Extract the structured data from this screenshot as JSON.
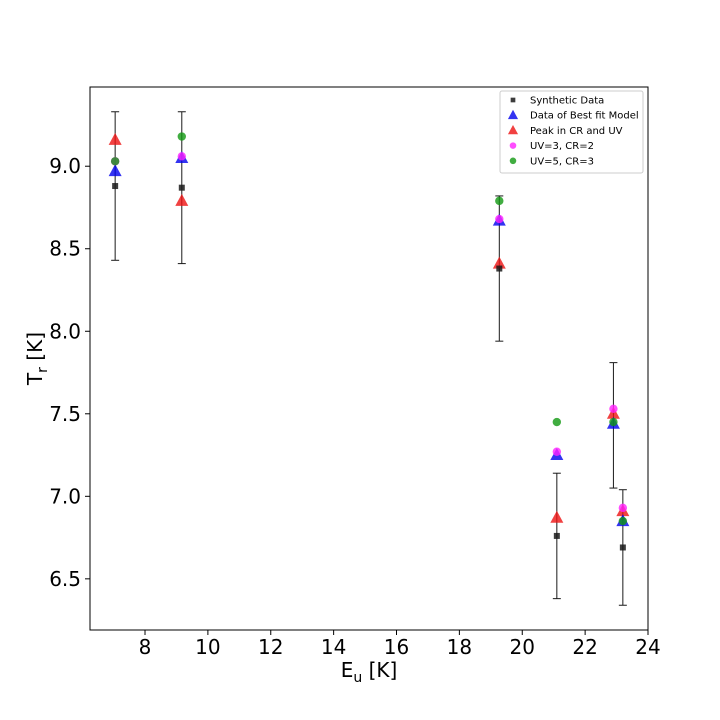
{
  "chart_data": {
    "type": "scatter",
    "xlabel": {
      "main": "E",
      "sub": "u",
      "unit": " [K]"
    },
    "ylabel": {
      "main": "T",
      "sub": "r",
      "unit": " [K]"
    },
    "xlim": [
      6.25,
      24.0
    ],
    "ylim": [
      6.19,
      9.48
    ],
    "xticks": [
      8,
      10,
      12,
      14,
      16,
      18,
      20,
      22,
      24
    ],
    "yticks": [
      6.5,
      7.0,
      7.5,
      8.0,
      8.5,
      9.0
    ],
    "xtick_labels": [
      "8",
      "10",
      "12",
      "14",
      "16",
      "18",
      "20",
      "22",
      "24"
    ],
    "ytick_labels": [
      "6.5",
      "7.0",
      "7.5",
      "8.0",
      "8.5",
      "9.0"
    ],
    "legend_position": "top-right",
    "grid": false,
    "series": [
      {
        "name": "Synthetic Data",
        "marker": "square",
        "color": "#1a1a1a",
        "x": [
          7.05,
          9.17,
          19.27,
          21.1,
          23.2
        ],
        "y": [
          8.88,
          8.87,
          8.38,
          6.76,
          6.69
        ],
        "yerr": [
          0.45,
          0.46,
          0.44,
          0.38,
          0.35
        ]
      },
      {
        "name": "Data of Best fit Model",
        "marker": "triangle",
        "color": "#0000ee",
        "x": [
          7.05,
          9.17,
          19.27,
          21.1,
          22.9,
          23.2
        ],
        "y": [
          8.97,
          9.05,
          8.67,
          7.25,
          7.44,
          6.85
        ]
      },
      {
        "name": "Peak in CR and UV",
        "marker": "triangle",
        "color": "#ee1111",
        "x": [
          7.05,
          9.17,
          19.27,
          21.1,
          22.9,
          23.2
        ],
        "y": [
          9.16,
          8.79,
          8.41,
          6.87,
          7.5,
          6.91
        ]
      },
      {
        "name": "UV=3, CR=2",
        "marker": "circle",
        "color": "#ff22ff",
        "x": [
          7.05,
          9.17,
          19.27,
          21.1,
          22.9,
          23.2
        ],
        "y": [
          9.03,
          9.06,
          8.68,
          7.27,
          7.53,
          6.93
        ]
      },
      {
        "name": "UV=5, CR=3",
        "marker": "circle",
        "color": "#119911",
        "x": [
          7.05,
          9.17,
          19.27,
          21.1,
          22.9,
          23.2
        ],
        "y": [
          9.03,
          9.18,
          8.79,
          7.45,
          7.45,
          6.85
        ]
      }
    ],
    "extra_errorbar": {
      "x": 22.9,
      "low": 7.05,
      "high": 7.81
    }
  }
}
